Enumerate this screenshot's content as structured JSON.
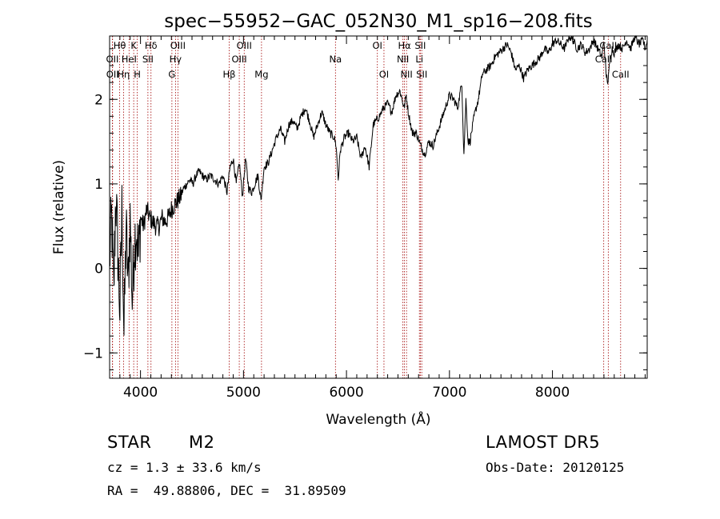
{
  "chart_data": {
    "type": "line",
    "title": "spec−55952−GAC_052N30_M1_sp16−208.fits",
    "xlabel": "Wavelength (Å)",
    "ylabel": "Flux (relative)",
    "xlim": [
      3700,
      8920
    ],
    "ylim": [
      -1.3,
      2.75
    ],
    "xticks": [
      4000,
      5000,
      6000,
      7000,
      8000
    ],
    "yticks": [
      -1,
      0,
      1,
      2
    ],
    "ytick_labels": [
      "−1",
      "0",
      "1",
      "2"
    ],
    "grid": false,
    "line_color": "#000000",
    "marker_color": "#a00000",
    "markers": [
      {
        "label": "Hθ",
        "wavelength": 3798,
        "row": 0
      },
      {
        "label": "K",
        "wavelength": 3934,
        "row": 0
      },
      {
        "label": "Hδ",
        "wavelength": 4102,
        "row": 0
      },
      {
        "label": "OIII",
        "wavelength": 4363,
        "row": 0
      },
      {
        "label": "OIII",
        "wavelength": 5007,
        "row": 0
      },
      {
        "label": "OI",
        "wavelength": 6300,
        "row": 0
      },
      {
        "label": "Hα",
        "wavelength": 6563,
        "row": 0
      },
      {
        "label": "SII",
        "wavelength": 6717,
        "row": 0
      },
      {
        "label": "CaII",
        "wavelength": 8542,
        "row": 0
      },
      {
        "label": "OII",
        "wavelength": 3727,
        "row": 1
      },
      {
        "label": "HeI",
        "wavelength": 3889,
        "row": 1
      },
      {
        "label": "SII",
        "wavelength": 4072,
        "row": 1
      },
      {
        "label": "Hγ",
        "wavelength": 4340,
        "row": 1
      },
      {
        "label": "OIII",
        "wavelength": 4959,
        "row": 1
      },
      {
        "label": "NII",
        "wavelength": 6548,
        "row": 1
      },
      {
        "label": "Li",
        "wavelength": 6708,
        "row": 1
      },
      {
        "label": "CaII",
        "wavelength": 8498,
        "row": 1
      },
      {
        "label": "OII",
        "wavelength": 3729,
        "row": 2
      },
      {
        "label": "Hη",
        "wavelength": 3835,
        "row": 2
      },
      {
        "label": "H",
        "wavelength": 3969,
        "row": 2
      },
      {
        "label": "G",
        "wavelength": 4305,
        "row": 2
      },
      {
        "label": "Hβ",
        "wavelength": 4861,
        "row": 2
      },
      {
        "label": "Mg",
        "wavelength": 5175,
        "row": 2
      },
      {
        "label": "Na",
        "wavelength": 5893,
        "row": 1
      },
      {
        "label": "OI",
        "wavelength": 6364,
        "row": 2
      },
      {
        "label": "NII",
        "wavelength": 6583,
        "row": 2
      },
      {
        "label": "SII",
        "wavelength": 6731,
        "row": 2
      },
      {
        "label": "CaII",
        "wavelength": 8662,
        "row": 2
      }
    ],
    "series": [
      {
        "x": [
          3700,
          3720,
          3740,
          3760,
          3780,
          3800,
          3820,
          3840,
          3860,
          3880,
          3900,
          3920,
          3940,
          3960,
          3980,
          4000,
          4030,
          4060,
          4090,
          4120,
          4150,
          4180,
          4210,
          4240,
          4270,
          4300,
          4330,
          4360,
          4390,
          4420,
          4450,
          4480,
          4510,
          4540,
          4570,
          4600,
          4640,
          4680,
          4720,
          4760,
          4800,
          4840,
          4870,
          4900,
          4930,
          4960,
          4990,
          5020,
          5050,
          5080,
          5110,
          5140,
          5170,
          5200,
          5240,
          5280,
          5320,
          5360,
          5400,
          5440,
          5480,
          5520,
          5560,
          5600,
          5640,
          5680,
          5720,
          5760,
          5800,
          5840,
          5880,
          5900,
          5920,
          5940,
          5980,
          6020,
          6060,
          6100,
          6140,
          6180,
          6220,
          6260,
          6290,
          6320,
          6360,
          6400,
          6440,
          6480,
          6520,
          6560,
          6580,
          6600,
          6640,
          6680,
          6720,
          6760,
          6800,
          6840,
          6880,
          6920,
          6960,
          7000,
          7040,
          7080,
          7120,
          7140,
          7160,
          7180,
          7200,
          7240,
          7280,
          7320,
          7360,
          7400,
          7440,
          7480,
          7520,
          7560,
          7600,
          7640,
          7680,
          7720,
          7760,
          7800,
          7840,
          7880,
          7920,
          7960,
          8000,
          8040,
          8080,
          8120,
          8160,
          8200,
          8240,
          8280,
          8320,
          8360,
          8400,
          8440,
          8480,
          8500,
          8520,
          8540,
          8560,
          8580,
          8600,
          8640,
          8680,
          8720,
          8760,
          8800,
          8840,
          8880,
          8900,
          8920
        ],
        "y": [
          0.1,
          0.6,
          -0.3,
          0.9,
          0.2,
          -0.5,
          0.7,
          -0.8,
          0.5,
          -0.2,
          0.6,
          -0.4,
          0.3,
          0.5,
          0.1,
          0.6,
          0.5,
          0.7,
          0.6,
          0.55,
          0.5,
          0.5,
          0.6,
          0.55,
          0.6,
          0.7,
          0.75,
          0.8,
          0.85,
          0.95,
          1.0,
          1.05,
          1.0,
          1.1,
          1.15,
          1.1,
          1.05,
          1.1,
          1.05,
          1.0,
          1.1,
          0.9,
          1.2,
          1.3,
          1.0,
          1.25,
          0.85,
          1.3,
          0.95,
          0.9,
          1.0,
          1.1,
          0.8,
          1.2,
          1.25,
          1.4,
          1.55,
          1.65,
          1.5,
          1.7,
          1.75,
          1.65,
          1.8,
          1.9,
          1.75,
          1.55,
          1.7,
          1.85,
          1.7,
          1.6,
          1.55,
          1.45,
          1.05,
          1.4,
          1.55,
          1.6,
          1.5,
          1.55,
          1.3,
          1.45,
          1.2,
          1.7,
          1.75,
          1.8,
          1.9,
          1.95,
          1.85,
          2.05,
          2.1,
          1.9,
          2.05,
          1.85,
          1.6,
          1.6,
          1.45,
          1.35,
          1.5,
          1.45,
          1.6,
          1.75,
          1.9,
          2.05,
          2.0,
          1.9,
          2.2,
          1.35,
          2.0,
          1.5,
          1.5,
          1.8,
          2.0,
          2.3,
          2.35,
          2.4,
          2.5,
          2.55,
          2.6,
          2.65,
          2.55,
          2.35,
          2.4,
          2.25,
          2.35,
          2.4,
          2.45,
          2.5,
          2.6,
          2.55,
          2.65,
          2.7,
          2.65,
          2.6,
          2.75,
          2.7,
          2.6,
          2.65,
          2.55,
          2.6,
          2.7,
          2.6,
          2.5,
          2.7,
          2.3,
          2.2,
          2.5,
          2.6,
          2.55,
          2.65,
          2.6,
          2.7,
          2.6,
          2.75,
          2.65,
          2.7,
          2.6,
          2.7
        ]
      }
    ]
  },
  "info": {
    "object_class": "STAR",
    "subclass": "M2",
    "survey": "LAMOST DR5",
    "redshift": "cz = 1.3 ± 33.6 km/s",
    "obs_date": "Obs-Date: 20120125",
    "coords": "RA =  49.88806, DEC =  31.89509"
  }
}
